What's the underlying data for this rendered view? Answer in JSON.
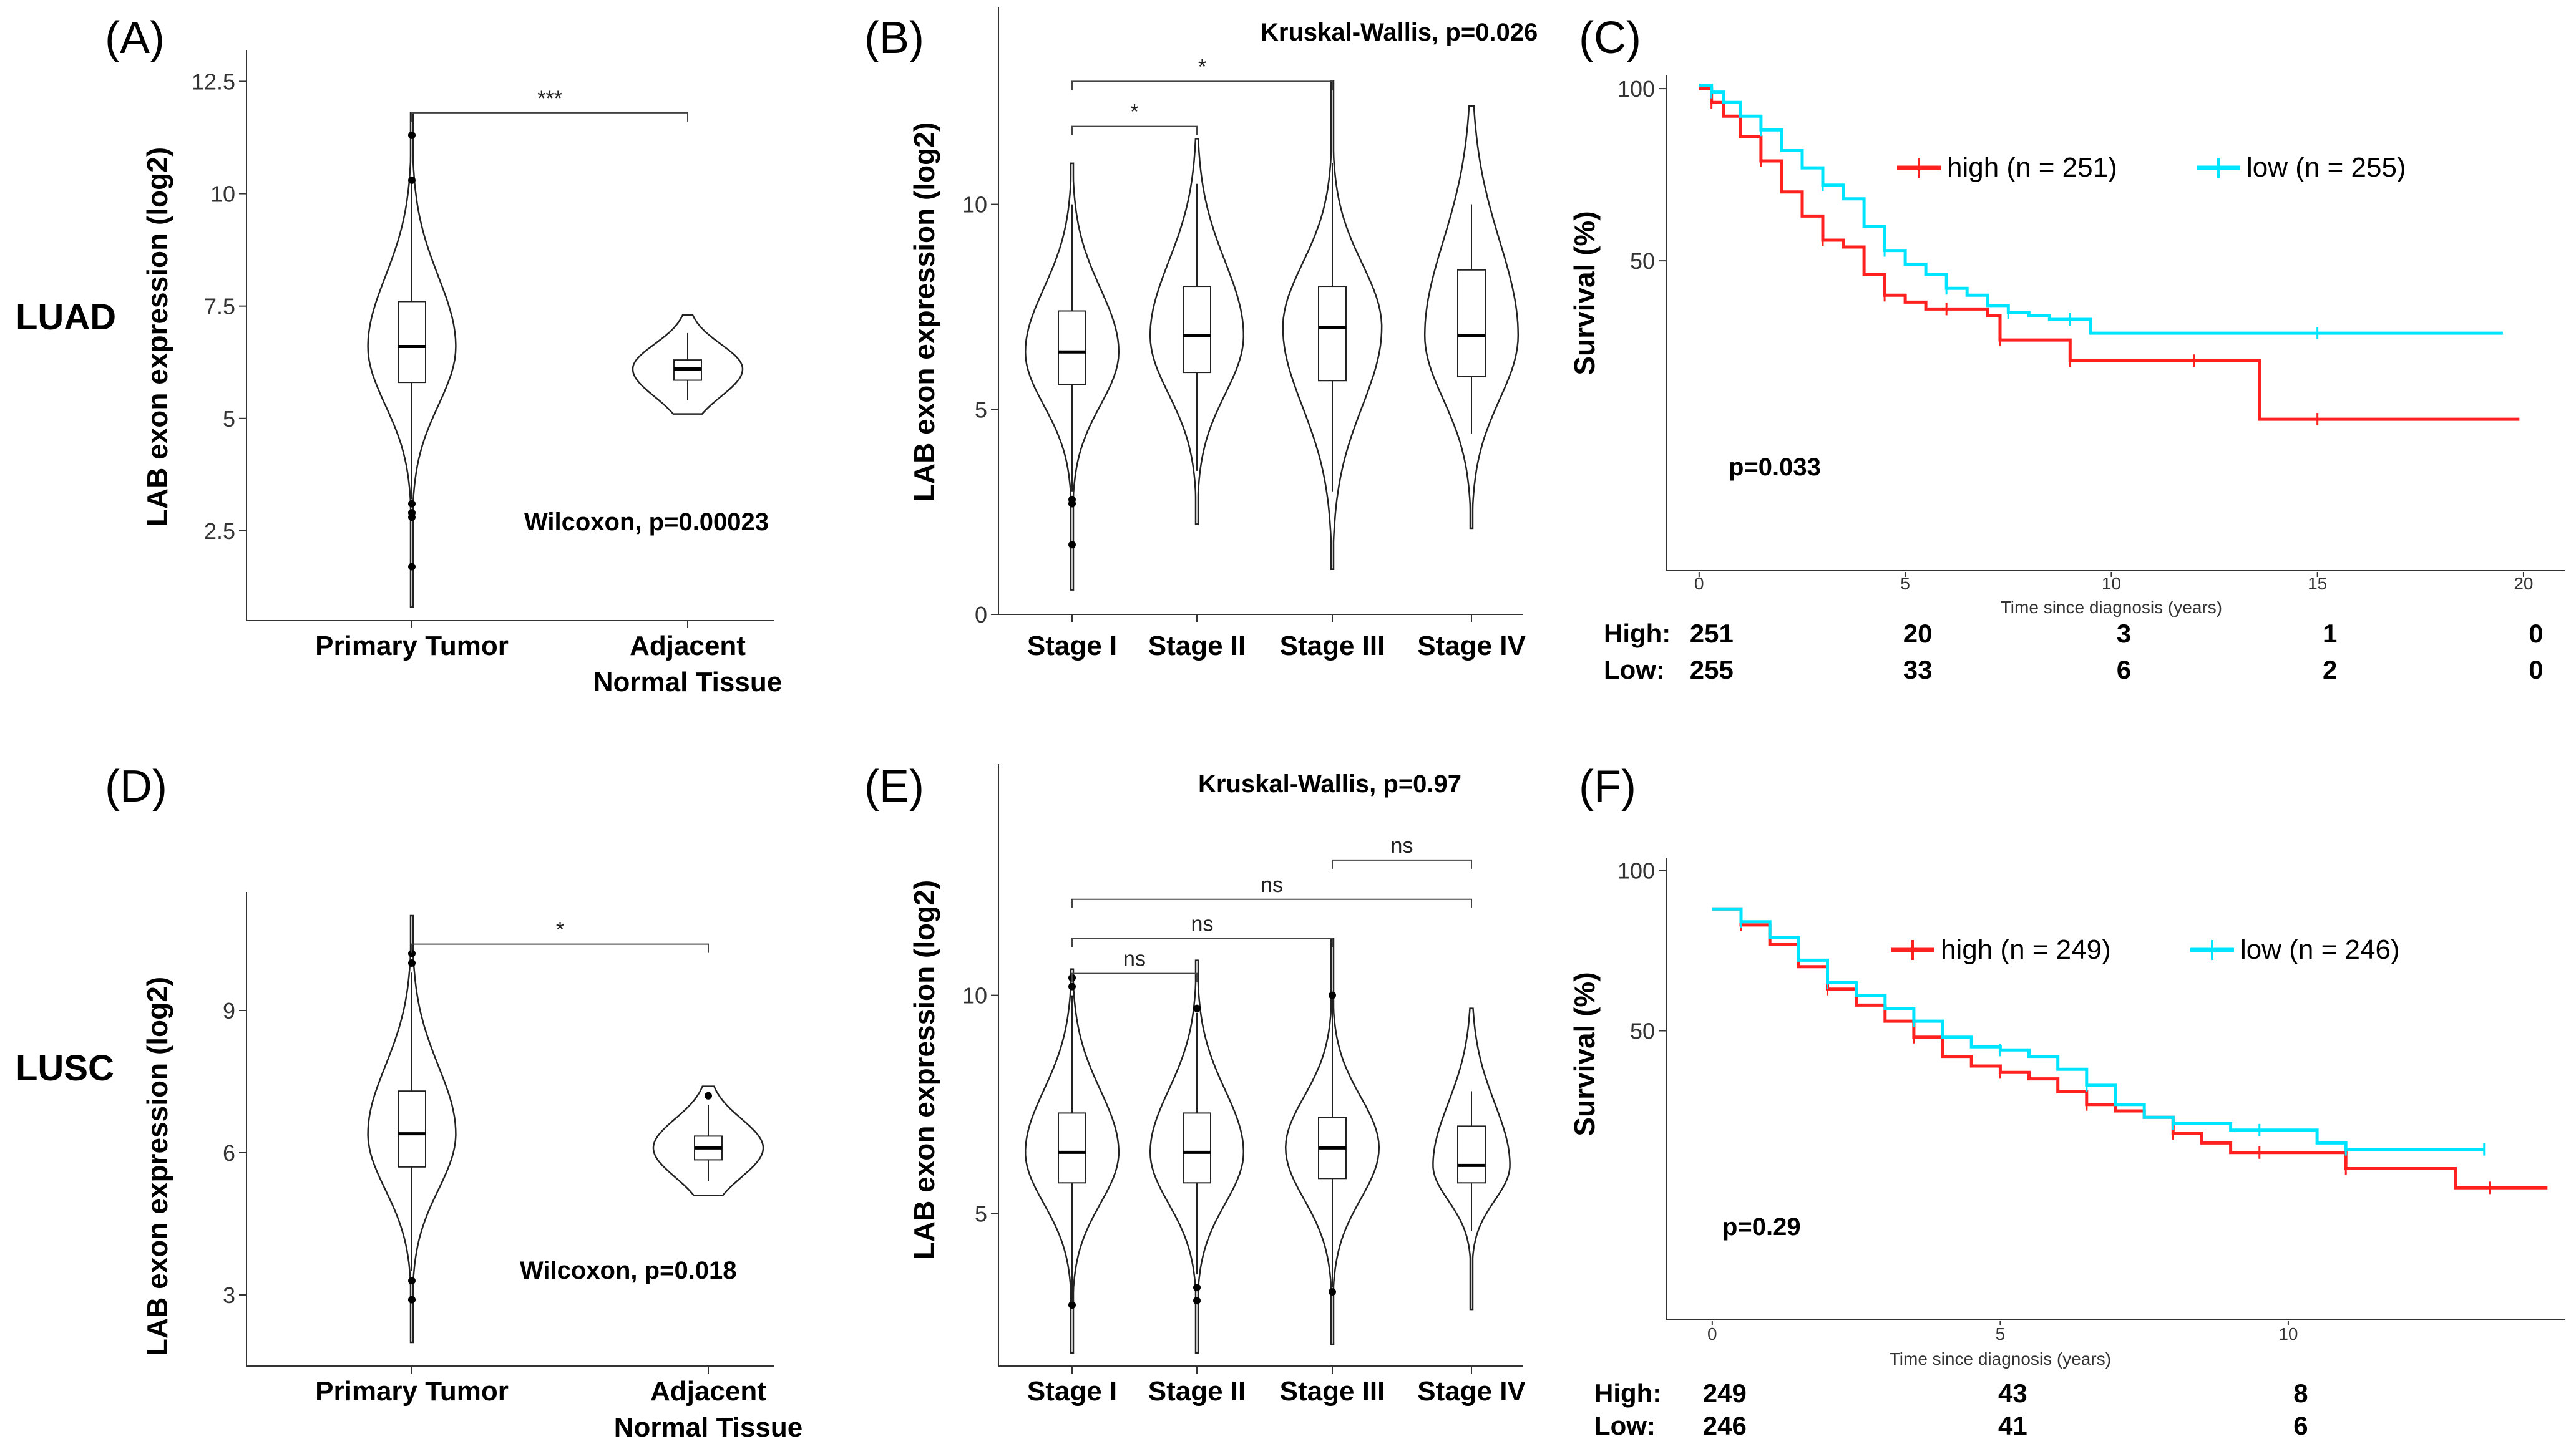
{
  "row_labels": [
    "LUAD",
    "LUSC"
  ],
  "chart_data": [
    {
      "panel": "(A)",
      "type": "violin",
      "ylabel": "LAB exon expression (log2)",
      "yticks": [
        2.5,
        5.0,
        7.5,
        10.0,
        12.5
      ],
      "ylim": [
        0.5,
        13.2
      ],
      "categories": [
        {
          "label": [
            "Primary Tumor"
          ],
          "q1": 5.8,
          "median": 6.6,
          "q3": 7.6,
          "whisker_low": 3.2,
          "whisker_high": 10.3,
          "min": 0.8,
          "max": 11.8,
          "width": 0.8,
          "outliers": [
            11.3,
            10.3,
            3.1,
            2.9,
            2.8,
            1.7
          ]
        },
        {
          "label": [
            "Adjacent",
            "Normal Tissue"
          ],
          "q1": 5.85,
          "median": 6.1,
          "q3": 6.3,
          "whisker_low": 5.4,
          "whisker_high": 6.9,
          "min": 5.1,
          "max": 7.3,
          "width": 1.0,
          "outliers": []
        }
      ],
      "brackets": [
        {
          "from": 0,
          "to": 1,
          "y": 11.8,
          "label": "***"
        }
      ],
      "annotation": "Wilcoxon, p=0.00023"
    },
    {
      "panel": "(B)",
      "type": "violin",
      "ylabel": "LAB exon expression (log2)",
      "yticks": [
        0,
        5,
        10
      ],
      "ylim": [
        0,
        14.8
      ],
      "categories": [
        {
          "label": [
            "Stage I"
          ],
          "q1": 5.6,
          "median": 6.4,
          "q3": 7.4,
          "whisker_low": 3.0,
          "whisker_high": 10.0,
          "min": 0.6,
          "max": 11.0,
          "width": 0.85,
          "outliers": [
            2.8,
            2.7,
            1.7
          ]
        },
        {
          "label": [
            "Stage II"
          ],
          "q1": 5.9,
          "median": 6.8,
          "q3": 8.0,
          "whisker_low": 3.5,
          "whisker_high": 10.5,
          "min": 2.2,
          "max": 11.6,
          "width": 0.85,
          "outliers": []
        },
        {
          "label": [
            "Stage III"
          ],
          "q1": 5.7,
          "median": 7.0,
          "q3": 8.0,
          "whisker_low": 3.0,
          "whisker_high": 11.0,
          "min": 1.1,
          "max": 13.0,
          "width": 0.9,
          "outliers": []
        },
        {
          "label": [
            "Stage IV"
          ],
          "q1": 5.8,
          "median": 6.8,
          "q3": 8.4,
          "whisker_low": 4.4,
          "whisker_high": 10.0,
          "min": 2.1,
          "max": 12.4,
          "width": 0.85,
          "outliers": []
        }
      ],
      "brackets": [
        {
          "from": 0,
          "to": 1,
          "y": 11.9,
          "label": "*"
        },
        {
          "from": 0,
          "to": 2,
          "y": 13.0,
          "label": "*"
        }
      ],
      "annotation": "Kruskal-Wallis, p=0.026"
    },
    {
      "panel": "(C)",
      "type": "survival",
      "ylabel": "Survival (%)",
      "xlabel": "Time since diagnosis (years)",
      "yticks": [
        50,
        100
      ],
      "xticks": [
        0,
        5,
        10,
        15,
        20
      ],
      "xlim": [
        -0.8,
        21
      ],
      "ylim": [
        -40,
        104
      ],
      "series": [
        {
          "name": "high (n = 251)",
          "color": "#ff2020",
          "x": [
            0,
            0.3,
            0.6,
            1.0,
            1.5,
            2.0,
            2.5,
            3.0,
            3.5,
            4.0,
            4.5,
            5.0,
            5.5,
            6.0,
            6.5,
            7.0,
            7.3,
            7.7,
            8.2,
            9.0,
            10.0,
            11.0,
            12.0,
            13.0,
            13.6,
            15.0,
            18.0,
            19.9
          ],
          "y": [
            100,
            96,
            92,
            86,
            79,
            70,
            63,
            56,
            54,
            46,
            40,
            38,
            36,
            36,
            36,
            34,
            27,
            27,
            27,
            21,
            21,
            21,
            21,
            21,
            4,
            4,
            4,
            4
          ]
        },
        {
          "name": "low (n = 255)",
          "color": "#00e5ff",
          "x": [
            0,
            0.3,
            0.6,
            1.0,
            1.5,
            2.0,
            2.5,
            3.0,
            3.5,
            4.0,
            4.5,
            5.0,
            5.5,
            6.0,
            6.5,
            7.0,
            7.5,
            8.0,
            8.5,
            9.0,
            9.5,
            12.0,
            15.0,
            18.0,
            19.5
          ],
          "y": [
            101,
            99,
            96,
            92,
            88,
            82,
            77,
            72,
            68,
            60,
            53,
            49,
            46,
            42,
            40,
            37,
            35,
            34,
            33,
            33,
            29,
            29,
            29,
            29,
            29
          ]
        }
      ],
      "annotation": "p=0.033",
      "risk_table": {
        "labels": [
          "High:",
          "Low:"
        ],
        "times": [
          0,
          5,
          10,
          15,
          20
        ],
        "rows": [
          [
            251,
            20,
            3,
            1,
            0
          ],
          [
            255,
            33,
            6,
            2,
            0
          ]
        ]
      }
    },
    {
      "panel": "(D)",
      "type": "violin",
      "ylabel": "LAB exon expression (log2)",
      "yticks": [
        3,
        6,
        9
      ],
      "ylim": [
        1.5,
        11.5
      ],
      "categories": [
        {
          "label": [
            "Primary Tumor"
          ],
          "q1": 5.7,
          "median": 6.4,
          "q3": 7.3,
          "whisker_low": 3.5,
          "whisker_high": 9.8,
          "min": 2.0,
          "max": 11.0,
          "width": 0.8,
          "outliers": [
            10.2,
            10.0,
            3.3,
            2.9
          ]
        },
        {
          "label": [
            "Adjacent",
            "Normal Tissue"
          ],
          "q1": 5.85,
          "median": 6.1,
          "q3": 6.35,
          "whisker_low": 5.4,
          "whisker_high": 7.0,
          "min": 5.1,
          "max": 7.4,
          "width": 1.0,
          "outliers": [
            7.2
          ]
        }
      ],
      "brackets": [
        {
          "from": 0,
          "to": 1,
          "y": 10.4,
          "label": "*"
        }
      ],
      "annotation": "Wilcoxon, p=0.018"
    },
    {
      "panel": "(E)",
      "type": "violin",
      "ylabel": "LAB exon expression (log2)",
      "yticks": [
        5,
        10
      ],
      "ylim": [
        1.5,
        15.3
      ],
      "categories": [
        {
          "label": [
            "Stage I"
          ],
          "q1": 5.7,
          "median": 6.4,
          "q3": 7.3,
          "whisker_low": 3.0,
          "whisker_high": 10.0,
          "min": 1.8,
          "max": 10.6,
          "width": 0.85,
          "outliers": [
            10.4,
            10.2,
            2.9
          ]
        },
        {
          "label": [
            "Stage II"
          ],
          "q1": 5.7,
          "median": 6.4,
          "q3": 7.3,
          "whisker_low": 3.6,
          "whisker_high": 9.6,
          "min": 1.8,
          "max": 10.8,
          "width": 0.85,
          "outliers": [
            9.7,
            3.3,
            3.0
          ]
        },
        {
          "label": [
            "Stage III"
          ],
          "q1": 5.8,
          "median": 6.5,
          "q3": 7.2,
          "whisker_low": 3.3,
          "whisker_high": 10.0,
          "min": 2.0,
          "max": 11.3,
          "width": 0.85,
          "outliers": [
            10.0,
            3.2
          ]
        },
        {
          "label": [
            "Stage IV"
          ],
          "q1": 5.7,
          "median": 6.1,
          "q3": 7.0,
          "whisker_low": 4.6,
          "whisker_high": 7.8,
          "min": 2.8,
          "max": 9.7,
          "width": 0.7,
          "outliers": []
        }
      ],
      "brackets": [
        {
          "from": 0,
          "to": 1,
          "y": 10.5,
          "label": "ns"
        },
        {
          "from": 0,
          "to": 2,
          "y": 11.3,
          "label": "ns"
        },
        {
          "from": 0,
          "to": 3,
          "y": 12.2,
          "label": "ns"
        },
        {
          "from": 2,
          "to": 3,
          "y": 13.1,
          "label": "ns"
        }
      ],
      "annotation": "Kruskal-Wallis, p=0.97"
    },
    {
      "panel": "(F)",
      "type": "survival",
      "ylabel": "Survival (%)",
      "xlabel": "Time since diagnosis (years)",
      "yticks": [
        50,
        100
      ],
      "xticks": [
        0,
        5,
        10
      ],
      "xlim": [
        -0.8,
        14.8
      ],
      "ylim": [
        -40,
        104
      ],
      "series": [
        {
          "name": "high (n = 249)",
          "color": "#ff2020",
          "x": [
            0,
            0.5,
            1.0,
            1.5,
            2.0,
            2.5,
            3.0,
            3.5,
            4.0,
            4.5,
            5.0,
            5.5,
            6.0,
            6.5,
            7.0,
            7.5,
            8.0,
            8.5,
            9.0,
            9.5,
            10.0,
            10.5,
            11.0,
            12.0,
            12.9,
            13.5,
            14.5
          ],
          "y": [
            88,
            83,
            77,
            70,
            63,
            58,
            53,
            48,
            42,
            39,
            37,
            35,
            31,
            27,
            25,
            23,
            18,
            15,
            12,
            12,
            12,
            12,
            7,
            7,
            1,
            1,
            1
          ]
        },
        {
          "name": "low (n = 246)",
          "color": "#00e5ff",
          "x": [
            0,
            0.5,
            1.0,
            1.5,
            2.0,
            2.5,
            3.0,
            3.5,
            4.0,
            4.5,
            5.0,
            5.5,
            6.0,
            6.5,
            7.0,
            7.5,
            8.0,
            8.5,
            9.0,
            9.5,
            10.0,
            10.5,
            11.0,
            12.0,
            13.0,
            13.4
          ],
          "y": [
            88,
            84,
            79,
            72,
            65,
            61,
            57,
            53,
            48,
            45,
            44,
            42,
            38,
            33,
            27,
            23,
            21,
            21,
            19,
            19,
            19,
            15,
            13,
            13,
            13,
            13
          ]
        }
      ],
      "annotation": "p=0.29",
      "risk_table": {
        "labels": [
          "High:",
          "Low:"
        ],
        "times": [
          0,
          5,
          10
        ],
        "rows": [
          [
            249,
            43,
            8
          ],
          [
            246,
            41,
            6
          ]
        ]
      }
    }
  ]
}
